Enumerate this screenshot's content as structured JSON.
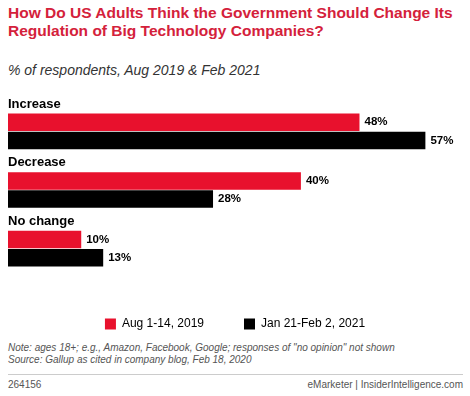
{
  "chart_data": {
    "type": "bar",
    "orientation": "horizontal",
    "title": "How Do US Adults Think the Government Should Change Its Regulation of Big Technology Companies?",
    "subtitle": "% of respondents, Aug 2019 & Feb 2021",
    "categories": [
      "Increase",
      "Decrease",
      "No change"
    ],
    "series": [
      {
        "name": "Aug 1-14, 2019",
        "color": "#e8112d",
        "values": [
          48,
          40,
          10
        ],
        "value_labels": [
          "48%",
          "40%",
          "10%"
        ]
      },
      {
        "name": "Jan 21-Feb 2, 2021",
        "color": "#000000",
        "values": [
          57,
          28,
          13
        ],
        "value_labels": [
          "57%",
          "28%",
          "13%"
        ]
      }
    ],
    "xlim": [
      0,
      62
    ],
    "grid": false,
    "tick_labels": false,
    "data_labels": true,
    "legend": "bottom",
    "notes": [
      "Note: ages 18+; e.g., Amazon, Facebook, Google; responses of \"no opinion\" not shown",
      "Source: Gallup as cited in company blog, Feb 18, 2020"
    ],
    "footer_id": "264156",
    "footer_brand": "eMarketer | InsiderIntelligence.com"
  }
}
